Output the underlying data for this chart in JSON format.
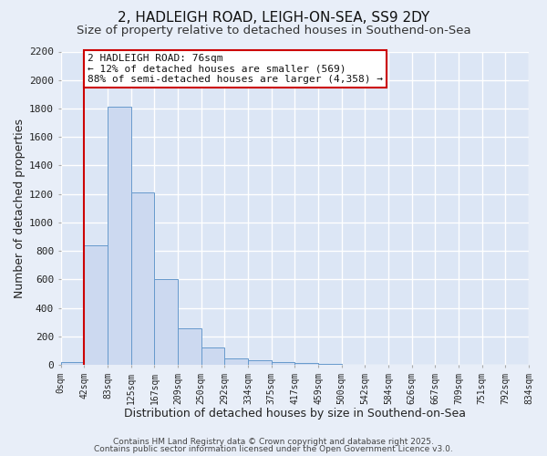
{
  "title": "2, HADLEIGH ROAD, LEIGH-ON-SEA, SS9 2DY",
  "subtitle": "Size of property relative to detached houses in Southend-on-Sea",
  "xlabel": "Distribution of detached houses by size in Southend-on-Sea",
  "ylabel": "Number of detached properties",
  "bar_values": [
    20,
    840,
    1810,
    1210,
    600,
    255,
    120,
    45,
    30,
    20,
    10,
    3,
    0,
    0,
    0,
    0,
    0,
    0,
    0,
    0
  ],
  "tick_labels": [
    "0sqm",
    "42sqm",
    "83sqm",
    "125sqm",
    "167sqm",
    "209sqm",
    "250sqm",
    "292sqm",
    "334sqm",
    "375sqm",
    "417sqm",
    "459sqm",
    "500sqm",
    "542sqm",
    "584sqm",
    "626sqm",
    "667sqm",
    "709sqm",
    "751sqm",
    "792sqm",
    "834sqm"
  ],
  "bar_color": "#ccd9f0",
  "bar_edge_color": "#6699cc",
  "vline_x": 1,
  "ylim": [
    0,
    2200
  ],
  "yticks": [
    0,
    200,
    400,
    600,
    800,
    1000,
    1200,
    1400,
    1600,
    1800,
    2000,
    2200
  ],
  "annotation_title": "2 HADLEIGH ROAD: 76sqm",
  "annotation_line1": "← 12% of detached houses are smaller (569)",
  "annotation_line2": "88% of semi-detached houses are larger (4,358) →",
  "annotation_box_color": "#ffffff",
  "annotation_box_edge": "#cc0000",
  "vline_color": "#cc0000",
  "footer1": "Contains HM Land Registry data © Crown copyright and database right 2025.",
  "footer2": "Contains public sector information licensed under the Open Government Licence v3.0.",
  "bg_color": "#e8eef8",
  "plot_bg_color": "#dce6f5",
  "grid_color": "#ffffff",
  "title_fontsize": 11,
  "subtitle_fontsize": 9.5
}
